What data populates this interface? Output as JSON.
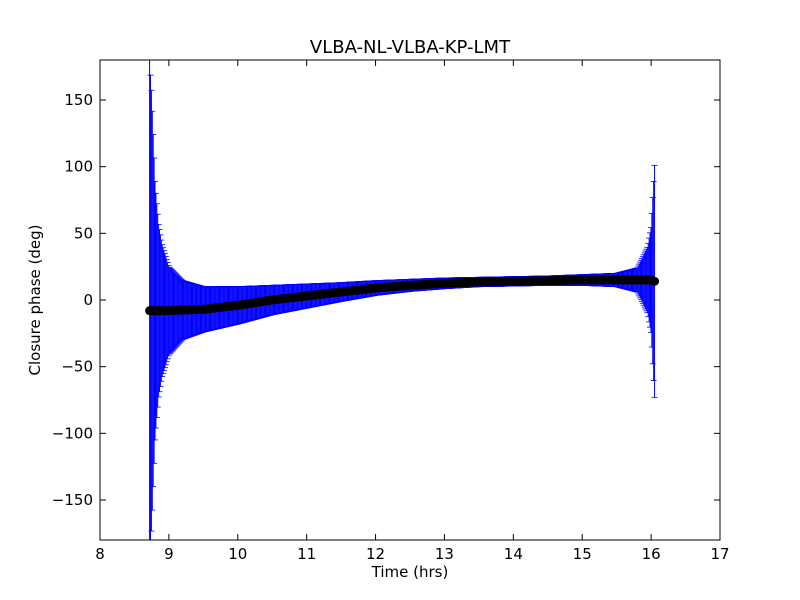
{
  "chart_data": {
    "type": "scatter",
    "title": "VLBA-NL-VLBA-KP-LMT",
    "xlabel": "Time (hrs)",
    "ylabel": "Closure phase (deg)",
    "xlim": [
      8,
      17
    ],
    "ylim": [
      -180,
      180
    ],
    "xticks": [
      8,
      9,
      10,
      11,
      12,
      13,
      14,
      15,
      16,
      17
    ],
    "yticks": [
      -150,
      -100,
      -50,
      0,
      50,
      100,
      150
    ],
    "xtick_labels": [
      "8",
      "9",
      "10",
      "11",
      "12",
      "13",
      "14",
      "15",
      "16",
      "17"
    ],
    "ytick_labels": [
      "−150",
      "−100",
      "−50",
      "0",
      "50",
      "100",
      "150"
    ],
    "grid": false,
    "colors": {
      "errorbar": "#0000ff",
      "marker": "#000000",
      "frame": "#000000"
    },
    "series": [
      {
        "x": [
          8.72,
          8.75,
          8.8,
          8.85,
          8.9,
          9.0,
          9.2,
          9.5,
          10.0,
          10.5,
          11.0,
          11.5,
          12.0,
          12.5,
          13.0,
          13.5,
          14.0,
          14.5,
          15.0,
          15.5,
          15.8,
          15.95,
          16.0,
          16.05
        ],
        "y": [
          -8,
          -8,
          -8,
          -8,
          -8,
          -8,
          -7.5,
          -7,
          -4,
          0,
          3,
          6,
          9,
          11,
          12.5,
          13.5,
          14,
          14.5,
          15,
          15,
          15,
          15,
          15,
          14
        ],
        "yerr": [
          188,
          162,
          95,
          65,
          50,
          33,
          22,
          17,
          14,
          11,
          9,
          7,
          5.5,
          4.5,
          4,
          3.5,
          3.5,
          3.5,
          4,
          5,
          9,
          25,
          40,
          87
        ]
      }
    ]
  }
}
